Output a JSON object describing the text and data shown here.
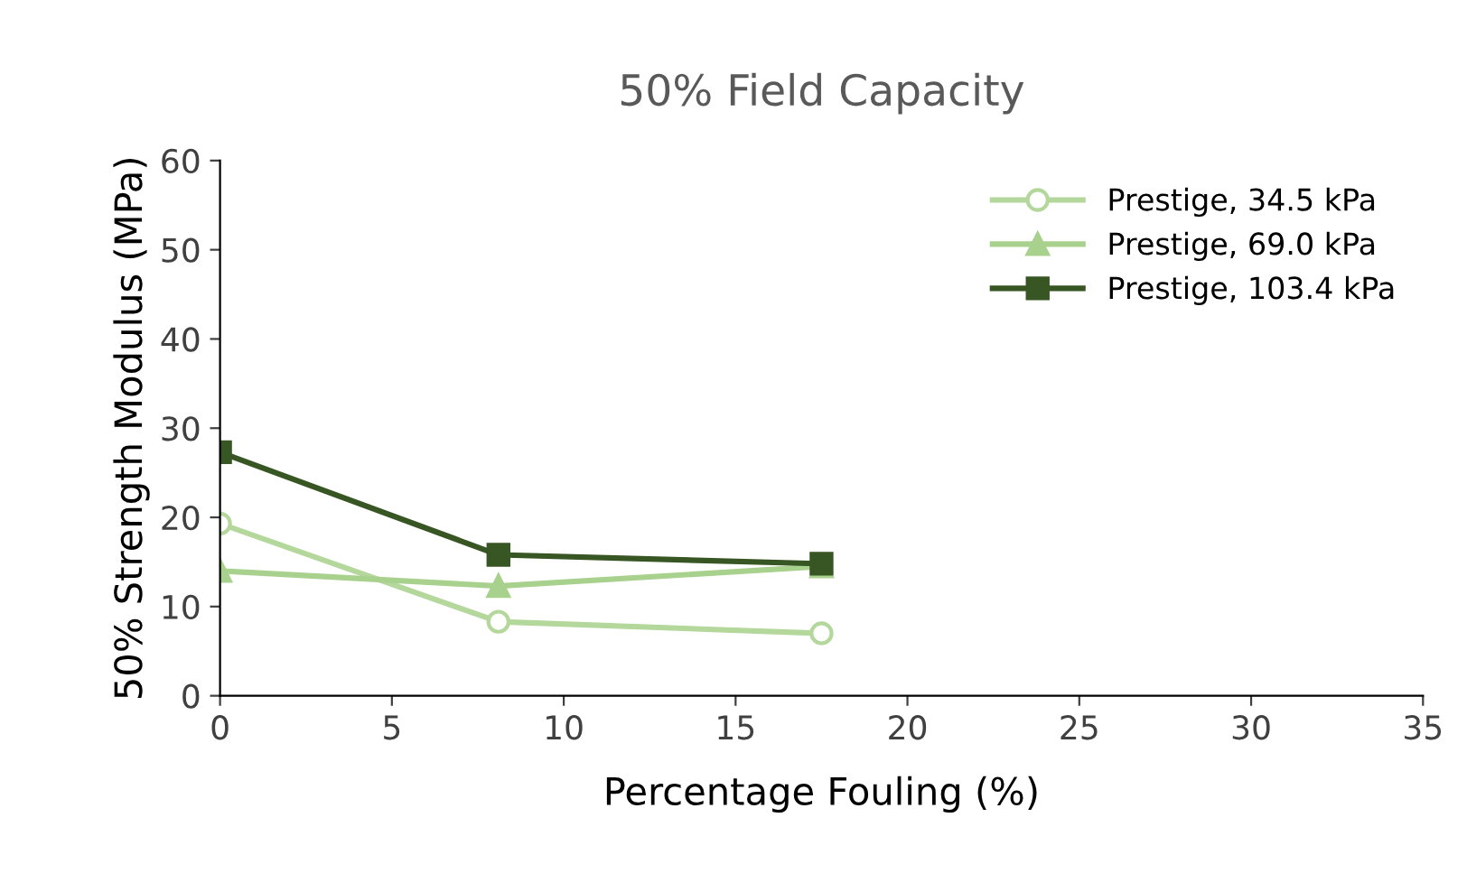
{
  "chart_data": {
    "type": "line",
    "title": "50% Field Capacity",
    "xlabel": "Percentage Fouling (%)",
    "ylabel": "50% Strength Modulus (MPa)",
    "x": [
      0,
      8.1,
      17.5
    ],
    "series": [
      {
        "name": "Prestige, 34.5 kPa",
        "color": "#b4d89c",
        "marker": "circle",
        "values": [
          19.3,
          8.3,
          7.0
        ]
      },
      {
        "name": "Prestige, 69.0 kPa",
        "color": "#a9d18e",
        "marker": "triangle",
        "values": [
          14.0,
          12.3,
          14.5
        ]
      },
      {
        "name": "Prestige, 103.4 kPa",
        "color": "#375623",
        "marker": "square",
        "values": [
          27.3,
          15.8,
          14.8
        ]
      }
    ],
    "xlim": [
      0,
      35
    ],
    "xticks": [
      0,
      5,
      10,
      15,
      20,
      25,
      30,
      35
    ],
    "ylim": [
      0,
      60
    ],
    "yticks": [
      0,
      10,
      20,
      30,
      40,
      50,
      60
    ],
    "grid": false,
    "legend": "top right",
    "line_style": "solid"
  }
}
